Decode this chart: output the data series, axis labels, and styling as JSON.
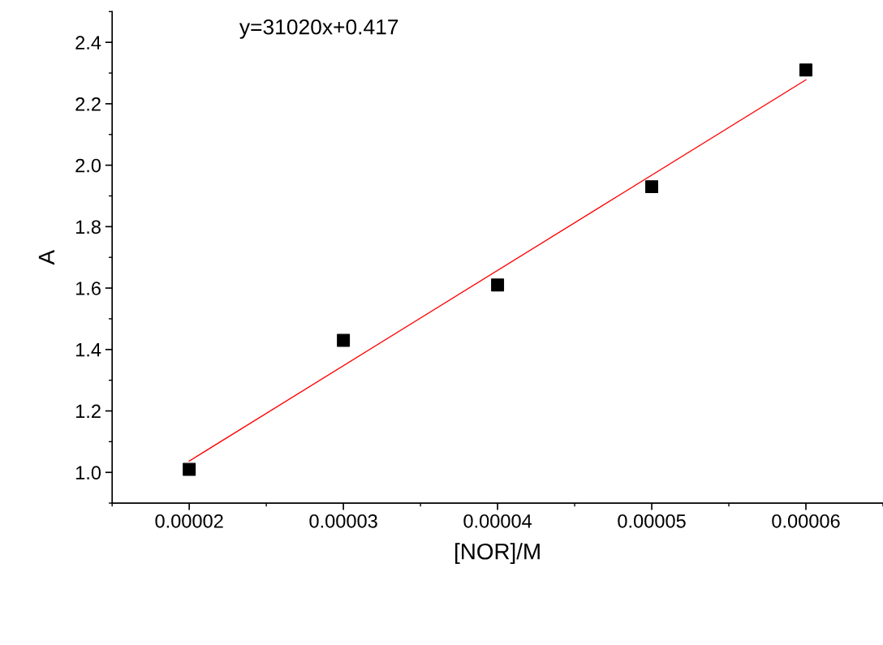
{
  "chart_data": {
    "type": "scatter",
    "xlabel": "[NOR]/M",
    "ylabel": "A",
    "annotations": [
      "y=31020x+0.417"
    ],
    "x": [
      2e-05,
      3e-05,
      4e-05,
      5e-05,
      6e-05
    ],
    "series": [
      {
        "color": "#000000",
        "marker": "square",
        "values": [
          1.01,
          1.43,
          1.61,
          1.93,
          2.31
        ]
      },
      {
        "type": "line",
        "color": "#ff0000",
        "line_style": "solid",
        "x": [
          2e-05,
          6e-05
        ],
        "values": [
          1.037,
          2.278
        ]
      }
    ],
    "xlim": [
      1.5e-05,
      6.5e-05
    ],
    "xticks": [
      {
        "value": 2e-05,
        "label": "0.00002"
      },
      {
        "value": 3e-05,
        "label": "0.00003"
      },
      {
        "value": 4e-05,
        "label": "0.00004"
      },
      {
        "value": 5e-05,
        "label": "0.00005"
      },
      {
        "value": 6e-05,
        "label": "0.00006"
      }
    ],
    "ylim": [
      0.9,
      2.5
    ],
    "yticks": [
      {
        "value": 1.0,
        "label": "1.0"
      },
      {
        "value": 1.2,
        "label": "1.2"
      },
      {
        "value": 1.4,
        "label": "1.4"
      },
      {
        "value": 1.6,
        "label": "1.6"
      },
      {
        "value": 1.8,
        "label": "1.8"
      },
      {
        "value": 2.0,
        "label": "2.0"
      },
      {
        "value": 2.2,
        "label": "2.2"
      },
      {
        "value": 2.4,
        "label": "2.4"
      }
    ],
    "grid": false,
    "legend": false
  }
}
